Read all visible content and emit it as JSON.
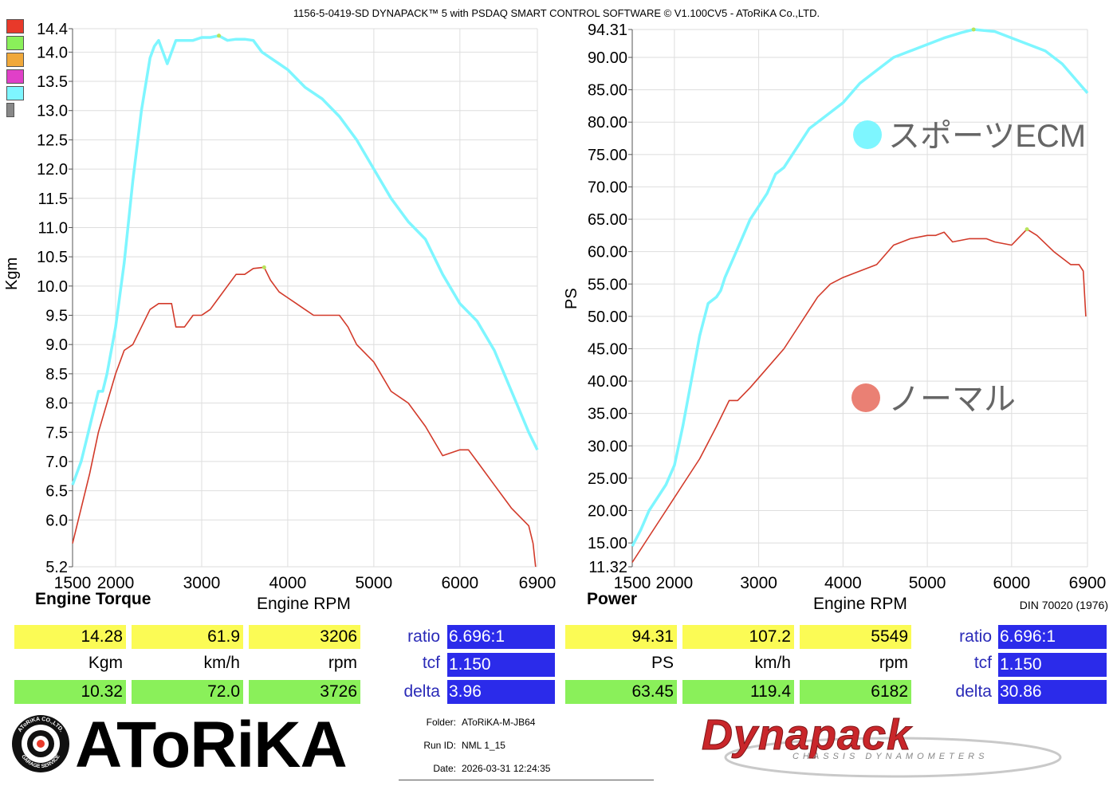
{
  "header": {
    "title": "1156-5-0419-SD DYNAPACK™ 5 with PSDAQ SMART CONTROL SOFTWARE © V1.100CV5 - AToRiKA Co.,LTD."
  },
  "legend_swatches": [
    "#e8392a",
    "#8af05a",
    "#f0a83a",
    "#e040c8",
    "#7ef6ff",
    "#888888"
  ],
  "colors": {
    "tuned": "#7ef6ff",
    "stock": "#d23a2a",
    "peak_marker": "#b8e35a"
  },
  "chart_data": [
    {
      "type": "line",
      "title": "Engine Torque",
      "xlabel": "Engine RPM",
      "ylabel": "Kgm",
      "xlim": [
        1500,
        6900
      ],
      "ylim": [
        5.2,
        14.4
      ],
      "x_ticks": [
        1500,
        2000,
        3000,
        4000,
        5000,
        6000,
        6900
      ],
      "y_ticks": [
        5.2,
        6.0,
        6.5,
        7.0,
        7.5,
        8.0,
        8.5,
        9.0,
        9.5,
        10.0,
        10.5,
        11.0,
        11.5,
        12.0,
        12.5,
        13.0,
        13.5,
        14.0,
        14.4
      ],
      "grid": true,
      "series": [
        {
          "key": "tuned",
          "x": [
            1500,
            1600,
            1700,
            1800,
            1850,
            1900,
            2000,
            2100,
            2200,
            2300,
            2400,
            2450,
            2500,
            2600,
            2700,
            2800,
            2900,
            3000,
            3100,
            3200,
            3300,
            3400,
            3500,
            3600,
            3700,
            3800,
            3900,
            4000,
            4200,
            4400,
            4600,
            4800,
            5000,
            5200,
            5400,
            5600,
            5800,
            6000,
            6200,
            6400,
            6600,
            6800,
            6900
          ],
          "y": [
            6.6,
            7.0,
            7.6,
            8.2,
            8.2,
            8.5,
            9.3,
            10.4,
            11.8,
            13.0,
            13.9,
            14.1,
            14.2,
            13.8,
            14.2,
            14.2,
            14.2,
            14.25,
            14.25,
            14.28,
            14.2,
            14.22,
            14.22,
            14.2,
            14.0,
            13.9,
            13.8,
            13.7,
            13.4,
            13.2,
            12.9,
            12.5,
            12.0,
            11.5,
            11.1,
            10.8,
            10.2,
            9.7,
            9.4,
            8.9,
            8.2,
            7.5,
            7.2
          ]
        },
        {
          "key": "stock",
          "x": [
            1500,
            1600,
            1700,
            1800,
            1900,
            2000,
            2100,
            2200,
            2300,
            2400,
            2500,
            2600,
            2650,
            2700,
            2800,
            2900,
            3000,
            3100,
            3200,
            3300,
            3400,
            3500,
            3600,
            3726,
            3800,
            3900,
            4000,
            4100,
            4200,
            4300,
            4400,
            4500,
            4600,
            4700,
            4800,
            5000,
            5200,
            5400,
            5600,
            5800,
            6000,
            6100,
            6200,
            6400,
            6600,
            6800,
            6850,
            6880
          ],
          "y": [
            5.6,
            6.2,
            6.8,
            7.5,
            8.0,
            8.5,
            8.9,
            9.0,
            9.3,
            9.6,
            9.7,
            9.7,
            9.7,
            9.3,
            9.3,
            9.5,
            9.5,
            9.6,
            9.8,
            10.0,
            10.2,
            10.2,
            10.3,
            10.32,
            10.1,
            9.9,
            9.8,
            9.7,
            9.6,
            9.5,
            9.5,
            9.5,
            9.5,
            9.3,
            9.0,
            8.7,
            8.2,
            8.0,
            7.6,
            7.1,
            7.2,
            7.2,
            7.0,
            6.6,
            6.2,
            5.9,
            5.6,
            5.2
          ]
        }
      ]
    },
    {
      "type": "line",
      "title": "Power",
      "xlabel": "Engine RPM",
      "ylabel": "PS",
      "xlim": [
        1500,
        6900
      ],
      "ylim": [
        11.32,
        94.31
      ],
      "x_ticks": [
        1500,
        2000,
        3000,
        4000,
        5000,
        6000,
        6900
      ],
      "y_ticks": [
        11.32,
        15.0,
        20.0,
        25.0,
        30.0,
        35.0,
        40.0,
        45.0,
        50.0,
        55.0,
        60.0,
        65.0,
        70.0,
        75.0,
        80.0,
        85.0,
        90.0,
        94.31
      ],
      "grid": true,
      "standard": "DIN 70020 (1976)",
      "annotations": [
        {
          "series": "tuned",
          "label": "スポーツECM"
        },
        {
          "series": "stock",
          "label": "ノーマル"
        }
      ],
      "series": [
        {
          "key": "tuned",
          "x": [
            1500,
            1600,
            1700,
            1800,
            1900,
            2000,
            2100,
            2200,
            2300,
            2400,
            2500,
            2550,
            2600,
            2700,
            2800,
            2900,
            3000,
            3100,
            3200,
            3300,
            3400,
            3500,
            3600,
            3700,
            3800,
            3900,
            4000,
            4200,
            4400,
            4600,
            4800,
            5000,
            5200,
            5400,
            5549,
            5800,
            6000,
            6200,
            6400,
            6600,
            6800,
            6900
          ],
          "y": [
            14.5,
            17,
            20,
            22,
            24,
            27,
            33,
            40,
            47,
            52,
            53,
            54,
            56,
            59,
            62,
            65,
            67,
            69,
            72,
            73,
            75,
            77,
            79,
            80,
            81,
            82,
            83,
            86,
            88,
            90,
            91,
            92,
            93,
            93.8,
            94.31,
            94,
            93,
            92,
            91,
            89,
            86,
            84.5
          ]
        },
        {
          "key": "stock",
          "x": [
            1500,
            1700,
            1900,
            2100,
            2300,
            2500,
            2650,
            2750,
            2900,
            3100,
            3300,
            3500,
            3700,
            3850,
            4000,
            4200,
            4400,
            4600,
            4800,
            5000,
            5100,
            5200,
            5300,
            5500,
            5700,
            5800,
            6000,
            6182,
            6300,
            6500,
            6700,
            6800,
            6850,
            6880
          ],
          "y": [
            12,
            16,
            20,
            24,
            28,
            33,
            37,
            37,
            39,
            42,
            45,
            49,
            53,
            55,
            56,
            57,
            58,
            61,
            62,
            62.5,
            62.5,
            63,
            61.5,
            62,
            62,
            61.5,
            61,
            63.45,
            62.5,
            60,
            58,
            58,
            57,
            50
          ]
        }
      ]
    }
  ],
  "torque_panel": {
    "title": "Engine Torque",
    "peak_tuned": {
      "value": "14.28",
      "speed": "61.9",
      "rpm": "3206"
    },
    "units": {
      "value": "Kgm",
      "speed": "km/h",
      "rpm": "rpm"
    },
    "peak_stock": {
      "value": "10.32",
      "speed": "72.0",
      "rpm": "3726"
    },
    "params": {
      "ratio_label": "ratio",
      "ratio": "6.696:1",
      "tcf_label": "tcf",
      "tcf": "1.150",
      "delta_label": "delta",
      "delta": "3.96"
    }
  },
  "power_panel": {
    "title": "Power",
    "peak_tuned": {
      "value": "94.31",
      "speed": "107.2",
      "rpm": "5549"
    },
    "units": {
      "value": "PS",
      "speed": "km/h",
      "rpm": "rpm"
    },
    "peak_stock": {
      "value": "63.45",
      "speed": "119.4",
      "rpm": "6182"
    },
    "params": {
      "ratio_label": "ratio",
      "ratio": "6.696:1",
      "tcf_label": "tcf",
      "tcf": "1.150",
      "delta_label": "delta",
      "delta": "30.86"
    }
  },
  "info": {
    "folder_label": "Folder:",
    "folder": "AToRiKA-M-JB64",
    "runid_label": "Run ID:",
    "runid": "NML 1_15",
    "date_label": "Date:",
    "date": "2026-03-31 12:24:35"
  },
  "logos": {
    "atorika": "AToRiKA",
    "atorika_seal_top": "AToRiKA CO.,LTD.",
    "atorika_seal_bottom": "GARAGE SERVICE",
    "dynapack": "Dynapack",
    "dynapack_sub": "CHASSIS DYNAMOMETERS"
  }
}
